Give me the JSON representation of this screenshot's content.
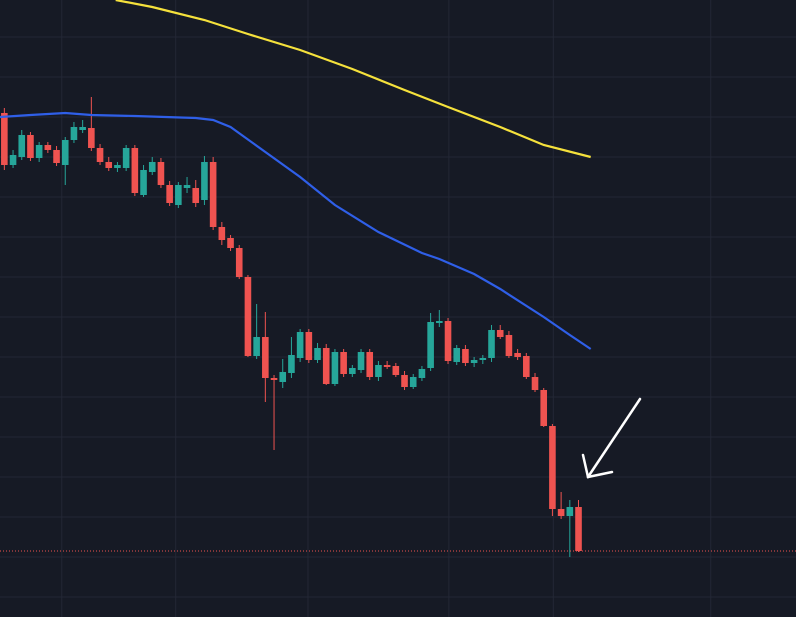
{
  "chart_data": {
    "type": "candlestick",
    "up_color": "#26a69a",
    "down_color": "#ef5350",
    "background": "#161a25",
    "grid_color": "#232735",
    "grid": true,
    "xlim": [
      -0.5,
      91
    ],
    "ylim": [
      0,
      617
    ],
    "xticks": [
      6.6,
      19.7,
      34.9,
      51.1,
      63.1,
      81.2
    ],
    "yticks": [
      20,
      60,
      100,
      140,
      180,
      220,
      260,
      300,
      340,
      380,
      420,
      460,
      500,
      540,
      580
    ],
    "candles": [
      [
        504,
        509,
        447,
        452
      ],
      [
        452,
        467,
        449,
        462
      ],
      [
        460,
        487,
        457,
        482
      ],
      [
        482,
        485,
        456,
        459
      ],
      [
        459,
        475,
        455,
        472
      ],
      [
        472,
        475,
        464,
        467
      ],
      [
        467,
        471,
        451,
        454
      ],
      [
        452,
        480,
        432,
        477
      ],
      [
        477,
        495,
        474,
        490
      ],
      [
        487,
        497,
        484,
        490
      ],
      [
        489,
        520,
        466,
        469
      ],
      [
        469,
        473,
        452,
        455
      ],
      [
        455,
        460,
        446,
        449
      ],
      [
        449,
        455,
        445,
        452
      ],
      [
        449,
        472,
        446,
        469
      ],
      [
        469,
        472,
        421,
        424
      ],
      [
        422,
        452,
        420,
        447
      ],
      [
        445,
        460,
        442,
        455
      ],
      [
        455,
        459,
        429,
        432
      ],
      [
        432,
        436,
        411,
        414
      ],
      [
        412,
        435,
        409,
        432
      ],
      [
        429,
        440,
        424,
        432
      ],
      [
        429,
        437,
        410,
        414
      ],
      [
        417,
        461,
        412,
        455
      ],
      [
        455,
        460,
        387,
        390
      ],
      [
        390,
        395,
        372,
        377
      ],
      [
        379,
        382,
        366,
        369
      ],
      [
        369,
        372,
        338,
        340
      ],
      [
        340,
        342,
        260,
        261
      ],
      [
        261,
        313,
        258,
        280
      ],
      [
        280,
        305,
        215,
        239
      ],
      [
        239,
        242,
        167,
        237
      ],
      [
        235,
        258,
        229,
        245
      ],
      [
        244,
        280,
        239,
        262
      ],
      [
        259,
        288,
        255,
        285
      ],
      [
        285,
        288,
        254,
        257
      ],
      [
        257,
        274,
        254,
        269
      ],
      [
        269,
        273,
        232,
        233
      ],
      [
        233,
        268,
        231,
        265
      ],
      [
        265,
        268,
        240,
        243
      ],
      [
        243,
        252,
        240,
        249
      ],
      [
        247,
        268,
        244,
        265
      ],
      [
        265,
        268,
        237,
        240
      ],
      [
        240,
        256,
        236,
        252
      ],
      [
        252,
        256,
        248,
        250
      ],
      [
        251,
        254,
        240,
        242
      ],
      [
        242,
        246,
        227,
        230
      ],
      [
        230,
        243,
        228,
        240
      ],
      [
        239,
        251,
        236,
        248
      ],
      [
        249,
        304,
        246,
        295
      ],
      [
        294,
        307,
        290,
        296
      ],
      [
        296,
        299,
        253,
        256
      ],
      [
        255,
        272,
        252,
        269
      ],
      [
        268,
        272,
        251,
        254
      ],
      [
        254,
        260,
        250,
        257
      ],
      [
        257,
        262,
        253,
        259
      ],
      [
        259,
        292,
        255,
        287
      ],
      [
        287,
        292,
        278,
        280
      ],
      [
        282,
        286,
        259,
        261
      ],
      [
        264,
        268,
        257,
        260
      ],
      [
        261,
        264,
        238,
        240
      ],
      [
        240,
        244,
        225,
        227
      ],
      [
        227,
        229,
        190,
        191
      ],
      [
        191,
        193,
        101,
        108
      ],
      [
        108,
        125,
        98,
        101
      ],
      [
        101,
        117,
        60,
        110
      ],
      [
        110,
        117,
        65,
        66
      ]
    ],
    "lines": [
      {
        "color": "#f5e13c",
        "x": [
          12.8,
          17,
          23,
          28,
          34,
          40,
          46,
          51,
          57,
          62,
          67.4
        ],
        "values": [
          617,
          610,
          597,
          583,
          567,
          548,
          527,
          510,
          490,
          472,
          460
        ]
      },
      {
        "color": "#2f5fe8",
        "x": [
          -0.5,
          3,
          7,
          10,
          15,
          22,
          24,
          26,
          30,
          34,
          38,
          43,
          48,
          50,
          54,
          57,
          62,
          65,
          67.4
        ],
        "values": [
          500,
          502,
          504,
          502,
          501,
          499,
          497,
          490,
          465,
          440,
          412,
          385,
          364,
          358,
          343,
          328,
          300,
          282,
          268
        ]
      }
    ],
    "price_line": {
      "value": 66,
      "color": "#ef5350"
    }
  }
}
